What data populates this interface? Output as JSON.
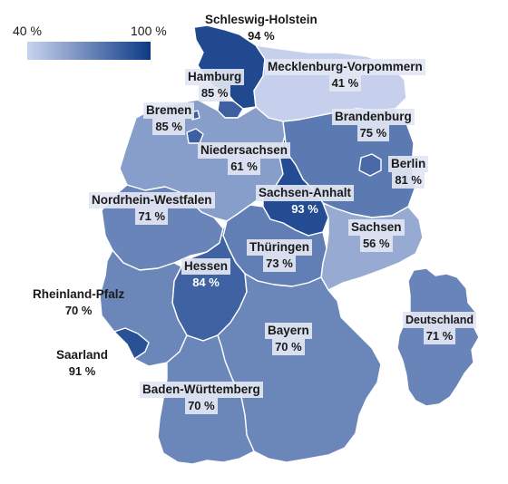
{
  "legend": {
    "min_label": "40 %",
    "max_label": "100 %",
    "color_min": "#c9d3ee",
    "color_max": "#0d3a86"
  },
  "states": {
    "sh": {
      "name": "Schleswig-Holstein",
      "value": "94 %",
      "pct": 94
    },
    "hh": {
      "name": "Hamburg",
      "value": "85 %",
      "pct": 85
    },
    "mv": {
      "name": "Mecklenburg-Vorpommern",
      "value": "41 %",
      "pct": 41
    },
    "hb": {
      "name": "Bremen",
      "value": "85 %",
      "pct": 85
    },
    "bb": {
      "name": "Brandenburg",
      "value": "75 %",
      "pct": 75
    },
    "ni": {
      "name": "Niedersachsen",
      "value": "61 %",
      "pct": 61
    },
    "be": {
      "name": "Berlin",
      "value": "81 %",
      "pct": 81
    },
    "st": {
      "name": "Sachsen-Anhalt",
      "value": "93 %",
      "pct": 93
    },
    "nw": {
      "name": "Nordrhein-Westfalen",
      "value": "71 %",
      "pct": 71
    },
    "sn": {
      "name": "Sachsen",
      "value": "56 %",
      "pct": 56
    },
    "th": {
      "name": "Thüringen",
      "value": "73 %",
      "pct": 73
    },
    "he": {
      "name": "Hessen",
      "value": "84 %",
      "pct": 84
    },
    "rp": {
      "name": "Rheinland-Pfalz",
      "value": "70 %",
      "pct": 70
    },
    "by": {
      "name": "Bayern",
      "value": "70 %",
      "pct": 70
    },
    "sl": {
      "name": "Saarland",
      "value": "91 %",
      "pct": 91
    },
    "bw": {
      "name": "Baden-Württemberg",
      "value": "70 %",
      "pct": 70
    }
  },
  "national": {
    "name": "Deutschland",
    "value": "71 %",
    "pct": 71
  }
}
